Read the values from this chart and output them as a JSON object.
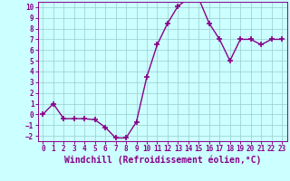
{
  "x": [
    0,
    1,
    2,
    3,
    4,
    5,
    6,
    7,
    8,
    9,
    10,
    11,
    12,
    13,
    14,
    15,
    16,
    17,
    18,
    19,
    20,
    21,
    22,
    23
  ],
  "y": [
    0.0,
    1.0,
    -0.4,
    -0.4,
    -0.4,
    -0.5,
    -1.2,
    -2.2,
    -2.2,
    -0.7,
    3.5,
    6.5,
    8.5,
    10.1,
    10.8,
    10.8,
    8.5,
    7.0,
    5.0,
    7.0,
    7.0,
    6.5,
    7.0,
    7.0
  ],
  "line_color": "#880088",
  "marker": "+",
  "marker_size": 4,
  "marker_linewidth": 1.2,
  "line_width": 1.0,
  "bg_color": "#ccffff",
  "grid_color": "#99cccc",
  "xlabel": "Windchill (Refroidissement éolien,°C)",
  "xlabel_fontsize": 7,
  "ylim": [
    -2.5,
    10.5
  ],
  "xlim": [
    -0.5,
    23.5
  ],
  "yticks": [
    -2,
    -1,
    0,
    1,
    2,
    3,
    4,
    5,
    6,
    7,
    8,
    9,
    10
  ],
  "xticks": [
    0,
    1,
    2,
    3,
    4,
    5,
    6,
    7,
    8,
    9,
    10,
    11,
    12,
    13,
    14,
    15,
    16,
    17,
    18,
    19,
    20,
    21,
    22,
    23
  ],
  "tick_fontsize": 5.5,
  "label_color": "#880088",
  "spine_color": "#880088"
}
